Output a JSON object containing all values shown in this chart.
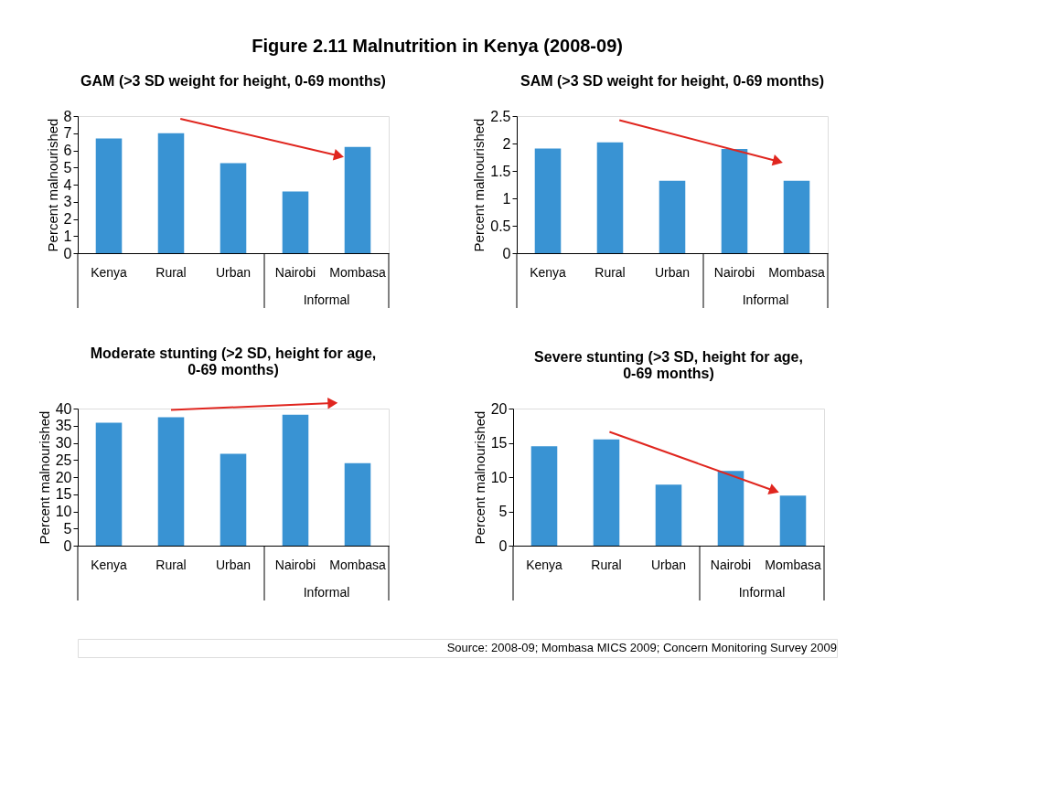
{
  "chart_data": [
    {
      "type": "other",
      "title": "Figure 2.11 Malnutrition in Kenya (2008-09)"
    },
    {
      "type": "bar",
      "title": "GAM (>3 SD weight for height, 0-69 months)",
      "ylabel": "Percent malnourished",
      "xlabel": "Informal",
      "categories": [
        "Kenya",
        "Rural",
        "Urban",
        "Nairobi",
        "Mombasa"
      ],
      "values": [
        6.7,
        7.0,
        5.25,
        3.6,
        6.2
      ],
      "color": "#3993d3",
      "ylim": [
        0,
        8
      ],
      "yticks": [
        0,
        1,
        2,
        3,
        4,
        5,
        6,
        7,
        8
      ],
      "grid": false
    },
    {
      "type": "bar",
      "title": "SAM (>3 SD weight for height, 0-69 months)",
      "ylabel": "Percent malnourished",
      "xlabel": "Informal",
      "categories": [
        "Kenya",
        "Rural",
        "Urban",
        "Nairobi",
        "Mombasa"
      ],
      "values": [
        1.91,
        2.02,
        1.32,
        1.9,
        1.32
      ],
      "color": "#3993d3",
      "ylim": [
        0,
        2.5
      ],
      "yticks": [
        0,
        0.5,
        1,
        1.5,
        2,
        2.5
      ],
      "grid": false
    },
    {
      "type": "bar",
      "title": "Moderate stunting (>2 SD, height for age, 0-69 months)",
      "ylabel": "Percent malnourished",
      "xlabel": "Informal",
      "categories": [
        "Kenya",
        "Rural",
        "Urban",
        "Nairobi",
        "Mombasa"
      ],
      "values": [
        35.9,
        37.5,
        26.8,
        38.2,
        24.1
      ],
      "color": "#3993d3",
      "ylim": [
        0,
        40
      ],
      "yticks": [
        0,
        5,
        10,
        15,
        20,
        25,
        30,
        35,
        40
      ],
      "grid": false
    },
    {
      "type": "bar",
      "title": "Severe stunting (>3 SD, height for age, 0-69 months)",
      "ylabel": "Percent malnourished",
      "xlabel": "Informal",
      "categories": [
        "Kenya",
        "Rural",
        "Urban",
        "Nairobi",
        "Mombasa"
      ],
      "values": [
        14.5,
        15.5,
        8.9,
        10.9,
        7.3
      ],
      "color": "#3993d3",
      "ylim": [
        0,
        20
      ],
      "yticks": [
        0,
        5,
        10,
        15,
        20
      ],
      "grid": false
    },
    {
      "type": "other",
      "annotations": [
        "Source: 2008-09; Mombasa MICS 2009; Concern Monitoring Survey 2009"
      ]
    }
  ]
}
